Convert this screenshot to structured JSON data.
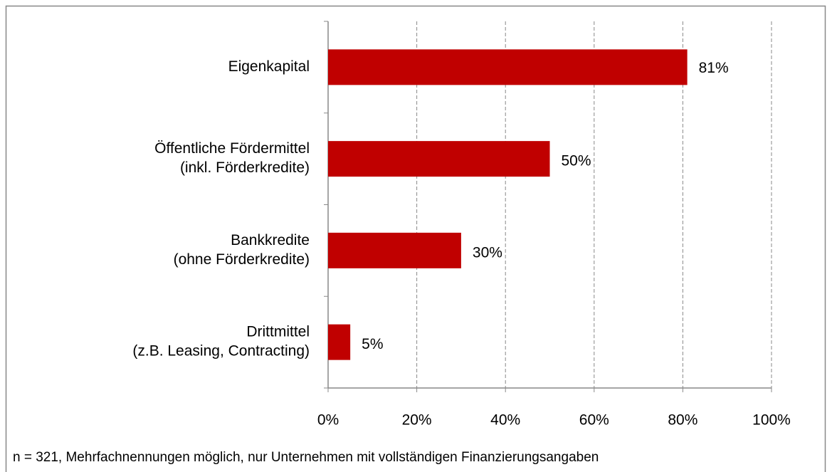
{
  "chart_data": {
    "type": "bar",
    "orientation": "horizontal",
    "categories": [
      [
        "Eigenkapital"
      ],
      [
        "Öffentliche Fördermittel",
        "(inkl. Förderkredite)"
      ],
      [
        "Bankkredite",
        "(ohne Förderkredite)"
      ],
      [
        "Drittmittel",
        "(z.B. Leasing,  Contracting)"
      ]
    ],
    "values": [
      81,
      50,
      30,
      5
    ],
    "value_labels": [
      "81%",
      "50%",
      "30%",
      "5%"
    ],
    "color": "#c00000",
    "xlim": [
      0,
      100
    ],
    "xticks": [
      {
        "value": 0,
        "label": "0%"
      },
      {
        "value": 20,
        "label": "20%"
      },
      {
        "value": 40,
        "label": "40%"
      },
      {
        "value": 60,
        "label": "60%"
      },
      {
        "value": 80,
        "label": "80%"
      },
      {
        "value": 100,
        "label": "100%"
      }
    ],
    "grid": true,
    "note": "n = 321, Mehrfachnennungen  möglich, nur Unternehmen  mit vollständigen Finanzierungsangaben"
  }
}
